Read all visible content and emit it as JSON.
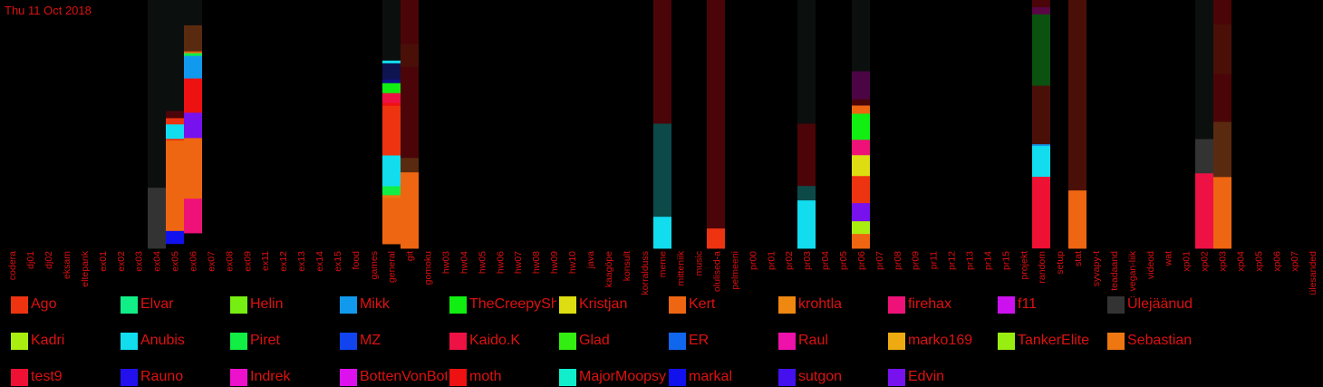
{
  "header": {
    "date": "Thu 11 Oct 2018"
  },
  "colors": {
    "background": "#000000",
    "text": "#dd1111",
    "base_fill": "#0b0f0e",
    "base_fill_alt": "#4b0508"
  },
  "chart_data": {
    "type": "bar",
    "stacked": true,
    "ylim": [
      0,
      100
    ],
    "grid": false,
    "legend_position": "bottom",
    "categories": [
      "codera",
      "dj01",
      "dj02",
      "eksam",
      "eltepank",
      "ex01",
      "ex02",
      "ex03",
      "ex04",
      "ex05",
      "ex06",
      "ex07",
      "ex08",
      "ex09",
      "ex11",
      "ex12",
      "ex13",
      "ex14",
      "ex15",
      "food",
      "games",
      "general",
      "git",
      "gomoku",
      "hw03",
      "hw04",
      "hw05",
      "hw06",
      "hw07",
      "hw08",
      "hw09",
      "hw10",
      "java",
      "kaagöpe",
      "konsult",
      "korralduss",
      "meme",
      "mitteniik",
      "music",
      "olulised-a",
      "pelmeeni",
      "pr00",
      "pr01",
      "pr02",
      "pr03",
      "pr04",
      "pr05",
      "pr06",
      "pr07",
      "pr08",
      "pr09",
      "pr11",
      "pr12",
      "pr13",
      "pr14",
      "pr15",
      "projekt",
      "random",
      "setup",
      "stat",
      "syvapy-t",
      "teadaand",
      "vegan-liik",
      "videod",
      "wat",
      "xp01",
      "xp02",
      "xp03",
      "xp04",
      "xp05",
      "xp06",
      "xp07",
      "ülesanded"
    ],
    "legend": [
      {
        "name": "Ago",
        "color": "#ee3311"
      },
      {
        "name": "Elvar",
        "color": "#11ee88"
      },
      {
        "name": "Helin",
        "color": "#77ee11"
      },
      {
        "name": "Mikk",
        "color": "#1199ee"
      },
      {
        "name": "TheCreepySh",
        "color": "#11ee11"
      },
      {
        "name": "Kristjan",
        "color": "#dddd11"
      },
      {
        "name": "Kert",
        "color": "#ee6611"
      },
      {
        "name": "krohtla",
        "color": "#ee8811"
      },
      {
        "name": "firehax",
        "color": "#ee1177"
      },
      {
        "name": "f11",
        "color": "#cc11ee"
      },
      {
        "name": "Ülejäänud",
        "color": "#333333"
      },
      {
        "name": "Kadri",
        "color": "#aaee11"
      },
      {
        "name": "Anubis",
        "color": "#11ddee"
      },
      {
        "name": "Piret",
        "color": "#11ee44"
      },
      {
        "name": "MZ",
        "color": "#1144ee"
      },
      {
        "name": "Kaido.K",
        "color": "#ee1144"
      },
      {
        "name": "Glad",
        "color": "#33ee11"
      },
      {
        "name": "ER",
        "color": "#1166ee"
      },
      {
        "name": "Raul",
        "color": "#ee11aa"
      },
      {
        "name": "marko169",
        "color": "#eeaa11"
      },
      {
        "name": "TankerElite",
        "color": "#99ee11"
      },
      {
        "name": "Sebastian",
        "color": "#ee7711"
      },
      {
        "name": "test9",
        "color": "#ee1133"
      },
      {
        "name": "Rauno",
        "color": "#2211ee"
      },
      {
        "name": "Indrek",
        "color": "#ee11cc"
      },
      {
        "name": "BottenVonBot",
        "color": "#dd11ee"
      },
      {
        "name": "moth",
        "color": "#ee1111"
      },
      {
        "name": "MajorMoopsy",
        "color": "#11eecc"
      },
      {
        "name": "markal",
        "color": "#1111ee"
      },
      {
        "name": "sutgon",
        "color": "#4411ee"
      },
      {
        "name": "Edvin",
        "color": "#7711ee"
      }
    ],
    "series": [
      {
        "category": "ex04",
        "segments": [
          {
            "color": "#0b0f0e",
            "value": 75.6
          },
          {
            "color": "#333333",
            "value": 24.4
          }
        ]
      },
      {
        "category": "ex05",
        "segments": [
          {
            "color": "#0b0f0e",
            "value": 44.7
          },
          {
            "color": "#4b0508",
            "value": 2.9
          },
          {
            "color": "#ee3311",
            "value": 2.5
          },
          {
            "color": "#11ddee",
            "value": 5.8
          },
          {
            "color": "#ee3311",
            "value": 0.7
          },
          {
            "color": "#ee6611",
            "value": 36.4
          },
          {
            "color": "#1111ee",
            "value": 5.1
          }
        ]
      },
      {
        "category": "ex06",
        "segments": [
          {
            "color": "#0b0f0e",
            "value": 10.2
          },
          {
            "color": "#5a2a10",
            "value": 10.5
          },
          {
            "color": "#ee6611",
            "value": 0.7
          },
          {
            "color": "#11ee44",
            "value": 1.1
          },
          {
            "color": "#1199ee",
            "value": 9.1
          },
          {
            "color": "#ee1111",
            "value": 13.8
          },
          {
            "color": "#7711ee",
            "value": 10.2
          },
          {
            "color": "#ee6611",
            "value": 1.1
          },
          {
            "color": "#ee6611",
            "value": 23.3
          },
          {
            "color": "#ee1177",
            "value": 13.8
          }
        ]
      },
      {
        "category": "general",
        "segments": [
          {
            "color": "#0b0f0e",
            "value": 24.4
          },
          {
            "color": "#11ddee",
            "value": 1.1
          },
          {
            "color": "#0e1450",
            "value": 6.5
          },
          {
            "color": "#111188",
            "value": 1.5
          },
          {
            "color": "#11ee11",
            "value": 4.0
          },
          {
            "color": "#ee1144",
            "value": 4.0
          },
          {
            "color": "#ee1111",
            "value": 1.1
          },
          {
            "color": "#ee3311",
            "value": 20.0
          },
          {
            "color": "#11ddee",
            "value": 12.4
          },
          {
            "color": "#11ee44",
            "value": 3.6
          },
          {
            "color": "#ee7711",
            "value": 1.1
          },
          {
            "color": "#ee6611",
            "value": 18.5
          }
        ]
      },
      {
        "category": "git",
        "segments": [
          {
            "color": "#4b0508",
            "value": 17.8
          },
          {
            "color": "#4a1008",
            "value": 9.1
          },
          {
            "color": "#4b0508",
            "value": 36.7
          },
          {
            "color": "#5a2a10",
            "value": 5.8
          },
          {
            "color": "#ee6611",
            "value": 30.6
          }
        ]
      },
      {
        "category": "meme",
        "segments": [
          {
            "color": "#4b0508",
            "value": 49.8
          },
          {
            "color": "#0c4a4a",
            "value": 37.5
          },
          {
            "color": "#11ddee",
            "value": 12.7
          }
        ]
      },
      {
        "category": "olulised-a",
        "segments": [
          {
            "color": "#4b0508",
            "value": 92.0
          },
          {
            "color": "#ee3311",
            "value": 8.0
          }
        ]
      },
      {
        "category": "pr03",
        "segments": [
          {
            "color": "#0b0f0e",
            "value": 49.8
          },
          {
            "color": "#4b0508",
            "value": 25.1
          },
          {
            "color": "#0c4a4a",
            "value": 5.8
          },
          {
            "color": "#11ddee",
            "value": 19.3
          }
        ]
      },
      {
        "category": "pr06",
        "segments": [
          {
            "color": "#0b0f0e",
            "value": 28.7
          },
          {
            "color": "#4b0544",
            "value": 11.3
          },
          {
            "color": "#4b0508",
            "value": 2.5
          },
          {
            "color": "#ee6611",
            "value": 3.3
          },
          {
            "color": "#11ee11",
            "value": 10.5
          },
          {
            "color": "#ee1177",
            "value": 6.2
          },
          {
            "color": "#dddd11",
            "value": 8.4
          },
          {
            "color": "#ee3311",
            "value": 10.9
          },
          {
            "color": "#7711ee",
            "value": 7.3
          },
          {
            "color": "#aaee11",
            "value": 5.1
          },
          {
            "color": "#ee6611",
            "value": 5.8
          }
        ]
      },
      {
        "category": "random",
        "segments": [
          {
            "color": "#4b0508",
            "value": 2.9
          },
          {
            "color": "#5a0544",
            "value": 2.9
          },
          {
            "color": "#0b5210",
            "value": 28.7
          },
          {
            "color": "#4a1008",
            "value": 23.6
          },
          {
            "color": "#1199ee",
            "value": 0.7
          },
          {
            "color": "#11ddee",
            "value": 12.4
          },
          {
            "color": "#ee1133",
            "value": 28.7
          }
        ]
      },
      {
        "category": "stat",
        "segments": [
          {
            "color": "#4a1008",
            "value": 76.7
          },
          {
            "color": "#ee6611",
            "value": 23.3
          }
        ]
      },
      {
        "category": "xp02",
        "segments": [
          {
            "color": "#0b0f0e",
            "value": 56.0
          },
          {
            "color": "#333333",
            "value": 13.8
          },
          {
            "color": "#ee1144",
            "value": 30.2
          }
        ]
      },
      {
        "category": "xp03",
        "segments": [
          {
            "color": "#4b0508",
            "value": 9.8
          },
          {
            "color": "#4a1008",
            "value": 20.0
          },
          {
            "color": "#4b0508",
            "value": 19.3
          },
          {
            "color": "#5a2a10",
            "value": 22.2
          },
          {
            "color": "#ee6611",
            "value": 28.7
          }
        ]
      }
    ]
  }
}
